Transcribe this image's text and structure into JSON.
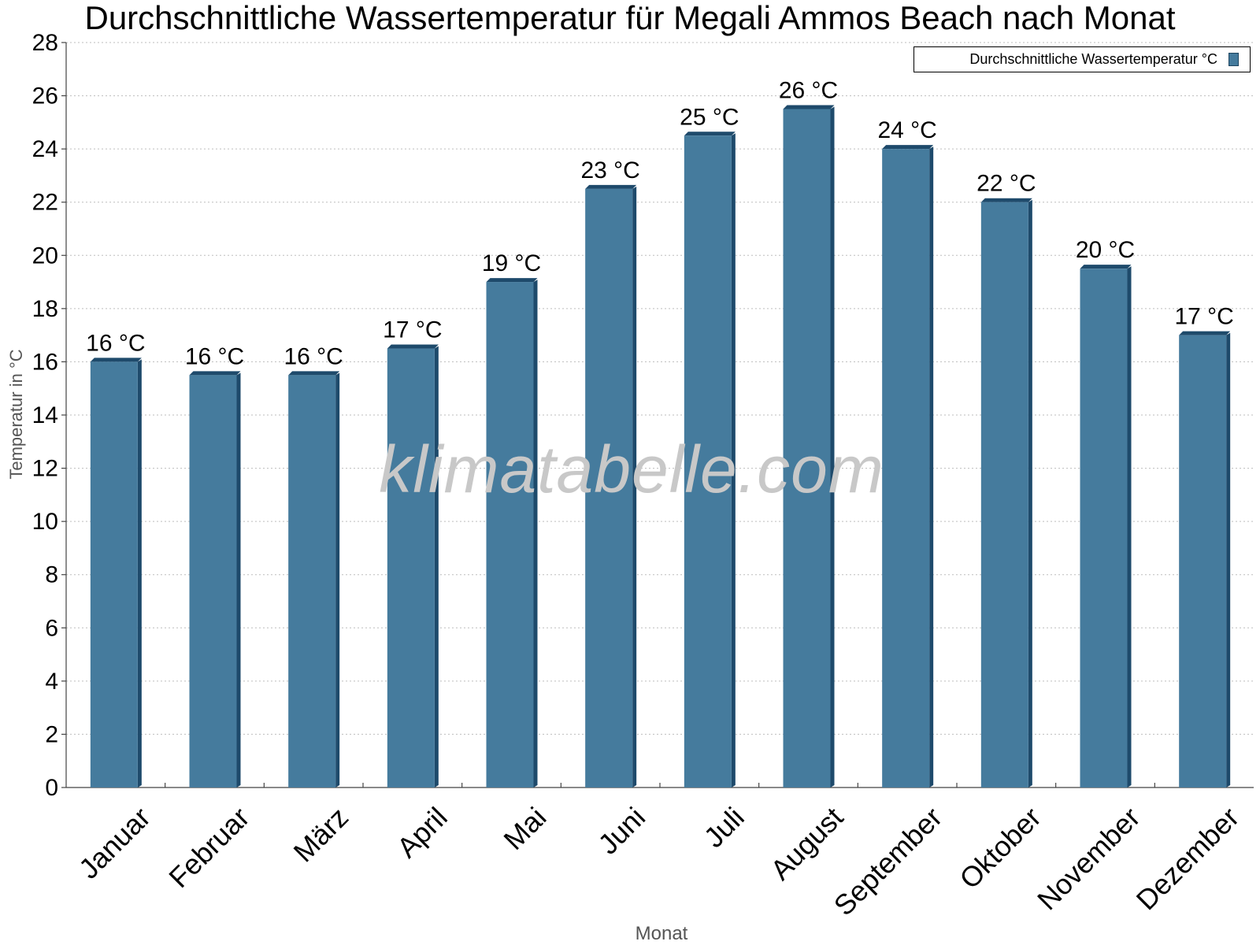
{
  "chart_data": {
    "type": "bar",
    "title": "Durchschnittliche Wassertemperatur für Megali Ammos Beach nach Monat",
    "xlabel": "Monat",
    "ylabel": "Temperatur in °C",
    "ylim": [
      0,
      28
    ],
    "yticks": [
      0,
      2,
      4,
      6,
      8,
      10,
      12,
      14,
      16,
      18,
      20,
      22,
      24,
      26,
      28
    ],
    "grid": true,
    "legend_position": "top-right",
    "categories": [
      "Januar",
      "Februar",
      "März",
      "April",
      "Mai",
      "Juni",
      "Juli",
      "August",
      "September",
      "Oktober",
      "November",
      "Dezember"
    ],
    "series": [
      {
        "name": "Durchschnittliche Wassertemperatur °C",
        "values": [
          16.0,
          15.5,
          15.5,
          16.5,
          19.0,
          22.5,
          24.5,
          25.5,
          24.0,
          22.0,
          19.5,
          17.0
        ],
        "labels": [
          "16 °C",
          "16 °C",
          "16 °C",
          "17 °C",
          "19 °C",
          "23 °C",
          "25 °C",
          "26 °C",
          "24 °C",
          "22 °C",
          "20 °C",
          "17 °C"
        ],
        "color": "#457b9d",
        "shade_color": "#1e4a6b"
      }
    ],
    "watermark": "klimatabelle.com"
  }
}
